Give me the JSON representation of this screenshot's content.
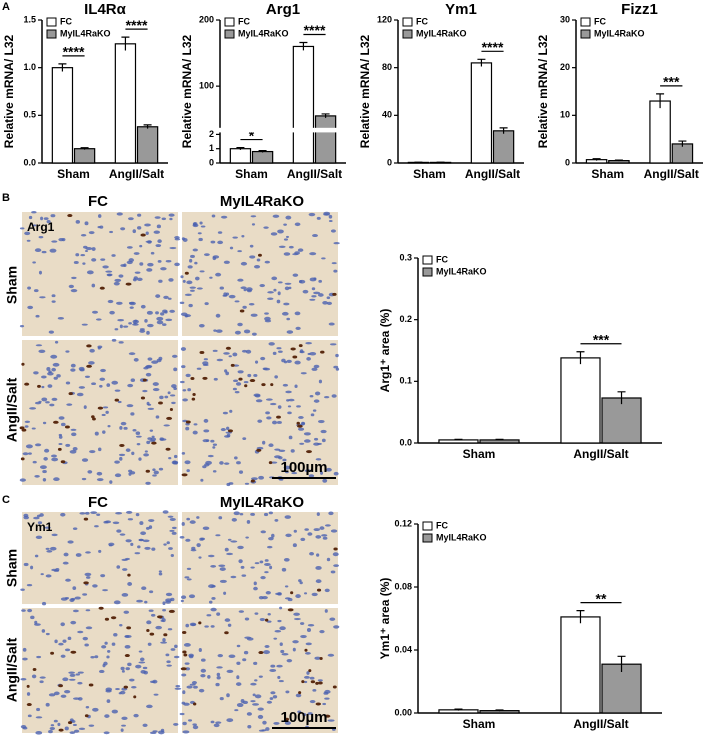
{
  "panels": {
    "a": "A",
    "b": "B",
    "c": "C"
  },
  "images": {
    "columns": [
      "FC",
      "MyIL4RaKO"
    ],
    "rows": [
      "Sham",
      "AngII/Salt"
    ],
    "b_stain": "Arg1",
    "c_stain": "Ym1",
    "scale_bar": "100µm"
  },
  "chart_data": [
    {
      "type": "bar",
      "title": "IL4Rα",
      "ylabel": "Relative mRNA/ L32",
      "categories": [
        "Sham",
        "AngII/Salt"
      ],
      "series": [
        {
          "name": "FC",
          "color": "#ffffff",
          "values": [
            1.0,
            1.25
          ],
          "errors": [
            0.04,
            0.07
          ]
        },
        {
          "name": "MyIL4RaKO",
          "color": "#999999",
          "values": [
            0.15,
            0.38
          ],
          "errors": [
            0.01,
            0.02
          ]
        }
      ],
      "ylim": [
        0,
        1.5
      ],
      "yticks": [
        {
          "value": 0,
          "label": "0.0"
        },
        0.5,
        {
          "value": 1,
          "label": "1.0"
        },
        1.5
      ],
      "significance": [
        "****",
        "****"
      ]
    },
    {
      "type": "bar",
      "title": "Arg1",
      "ylabel": "Relative mRNA/ L32",
      "categories": [
        "Sham",
        "AngII/Salt"
      ],
      "series": [
        {
          "name": "FC",
          "color": "#ffffff",
          "values": [
            1.0,
            160
          ],
          "errors": [
            0.08,
            6
          ]
        },
        {
          "name": "MyIL4RaKO",
          "color": "#999999",
          "values": [
            0.8,
            55
          ],
          "errors": [
            0.07,
            3
          ]
        }
      ],
      "ylim": [
        0,
        200
      ],
      "ybreak": [
        2,
        40
      ],
      "yticks": [
        0,
        1,
        2,
        100,
        200
      ],
      "significance": [
        "*",
        "****"
      ]
    },
    {
      "type": "bar",
      "title": "Ym1",
      "ylabel": "Relative mRNA/ L32",
      "categories": [
        "Sham",
        "AngII/Salt"
      ],
      "series": [
        {
          "name": "FC",
          "color": "#ffffff",
          "values": [
            0.5,
            84
          ],
          "errors": [
            0.1,
            3
          ]
        },
        {
          "name": "MyIL4RaKO",
          "color": "#999999",
          "values": [
            0.5,
            27
          ],
          "errors": [
            0.1,
            2.5
          ]
        }
      ],
      "ylim": [
        0,
        120
      ],
      "yticks": [
        0,
        40,
        80,
        120
      ],
      "significance": [
        null,
        "****"
      ]
    },
    {
      "type": "bar",
      "title": "Fizz1",
      "ylabel": "Relative mRNA/ L32",
      "categories": [
        "Sham",
        "AngII/Salt"
      ],
      "series": [
        {
          "name": "FC",
          "color": "#ffffff",
          "values": [
            0.7,
            13
          ],
          "errors": [
            0.2,
            1.5
          ]
        },
        {
          "name": "MyIL4RaKO",
          "color": "#999999",
          "values": [
            0.5,
            4
          ],
          "errors": [
            0.1,
            0.6
          ]
        }
      ],
      "ylim": [
        0,
        30
      ],
      "yticks": [
        0,
        10,
        20,
        30
      ],
      "significance": [
        null,
        "***"
      ]
    },
    {
      "type": "bar",
      "ylabel": "Arg1⁺ area (%)",
      "categories": [
        "Sham",
        "AngII/Salt"
      ],
      "series": [
        {
          "name": "FC",
          "color": "#ffffff",
          "values": [
            0.005,
            0.138
          ],
          "errors": [
            0.001,
            0.01
          ]
        },
        {
          "name": "MyIL4RaKO",
          "color": "#999999",
          "values": [
            0.005,
            0.073
          ],
          "errors": [
            0.001,
            0.01
          ]
        }
      ],
      "ylim": [
        0,
        0.3
      ],
      "yticks": [
        {
          "value": 0,
          "label": "0.0"
        },
        0.1,
        0.2,
        0.3
      ],
      "significance": [
        null,
        "***"
      ]
    },
    {
      "type": "bar",
      "ylabel": "Ym1⁺ area (%)",
      "categories": [
        "Sham",
        "AngII/Salt"
      ],
      "series": [
        {
          "name": "FC",
          "color": "#ffffff",
          "values": [
            0.002,
            0.061
          ],
          "errors": [
            0.0005,
            0.004
          ]
        },
        {
          "name": "MyIL4RaKO",
          "color": "#999999",
          "values": [
            0.0015,
            0.031
          ],
          "errors": [
            0.0004,
            0.005
          ]
        }
      ],
      "ylim": [
        0,
        0.12
      ],
      "yticks": [
        {
          "value": 0,
          "label": "0.00"
        },
        0.04,
        0.08,
        0.12
      ],
      "significance": [
        null,
        "**"
      ]
    }
  ]
}
